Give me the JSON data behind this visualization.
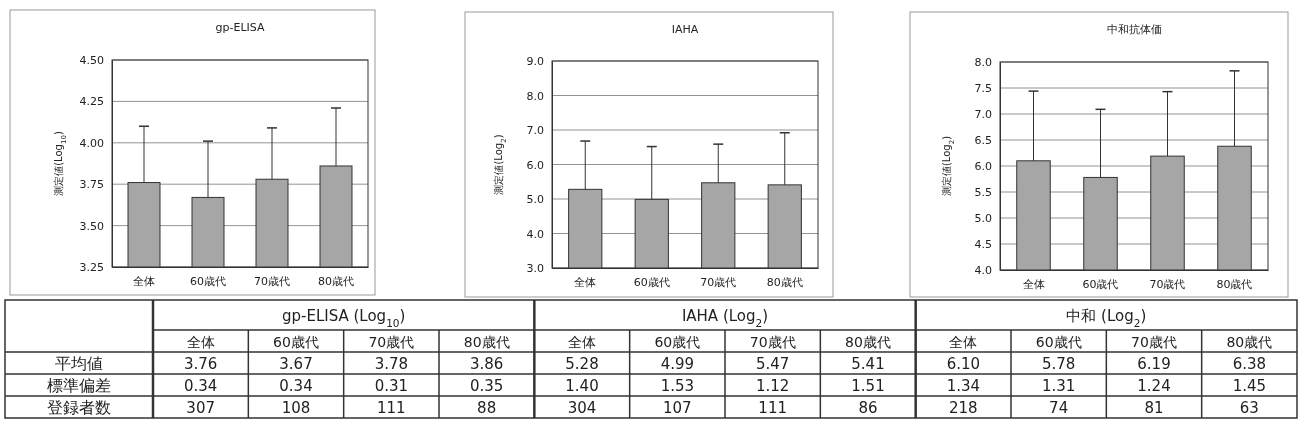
{
  "chart_data": [
    {
      "type": "bar",
      "title": "gp-ELISA",
      "ylabel": "測定値(Log$_{10}$)",
      "categories": [
        "全体",
        "60歳代",
        "70歳代",
        "80歳代"
      ],
      "color": "#a6a6a6",
      "values": [
        3.76,
        3.67,
        3.78,
        3.86
      ],
      "errors": [
        [
          3.76,
          4.1
        ],
        [
          3.67,
          4.01
        ],
        [
          3.78,
          4.09
        ],
        [
          3.86,
          4.21
        ]
      ],
      "ylim": [
        3.25,
        4.5
      ],
      "yticks": [
        {
          "value": 3.25,
          "label": "3.25"
        },
        {
          "value": 3.5,
          "label": "3.50"
        },
        {
          "value": 3.75,
          "label": "3.75"
        },
        {
          "value": 4,
          "label": "4.00"
        },
        {
          "value": 4.25,
          "label": "4.25"
        },
        {
          "value": 4.5,
          "label": "4.50"
        }
      ],
      "grid": "y"
    },
    {
      "type": "bar",
      "title": "IAHA",
      "ylabel": "測定値(Log$_{2}$)",
      "categories": [
        "全体",
        "60歳代",
        "70歳代",
        "80歳代"
      ],
      "color": "#a6a6a6",
      "values": [
        5.28,
        4.99,
        5.47,
        5.41
      ],
      "errors": [
        [
          5.28,
          6.68
        ],
        [
          4.99,
          6.52
        ],
        [
          5.47,
          6.59
        ],
        [
          5.41,
          6.92
        ]
      ],
      "ylim": [
        3,
        9
      ],
      "yticks": [
        {
          "value": 3,
          "label": "3.0"
        },
        {
          "value": 4,
          "label": "4.0"
        },
        {
          "value": 5,
          "label": "5.0"
        },
        {
          "value": 6,
          "label": "6.0"
        },
        {
          "value": 7,
          "label": "7.0"
        },
        {
          "value": 8,
          "label": "8.0"
        },
        {
          "value": 9,
          "label": "9.0"
        }
      ],
      "grid": "y"
    },
    {
      "type": "bar",
      "title": "中和抗体価",
      "ylabel": "測定値(Log$_{2}$)",
      "categories": [
        "全体",
        "60歳代",
        "70歳代",
        "80歳代"
      ],
      "color": "#a6a6a6",
      "values": [
        6.1,
        5.78,
        6.19,
        6.38
      ],
      "errors": [
        [
          6.1,
          7.44
        ],
        [
          5.78,
          7.09
        ],
        [
          6.19,
          7.43
        ],
        [
          6.38,
          7.83
        ]
      ],
      "ylim": [
        4,
        8
      ],
      "yticks": [
        {
          "value": 4,
          "label": "4.0"
        },
        {
          "value": 4.5,
          "label": "4.5"
        },
        {
          "value": 5,
          "label": "5.0"
        },
        {
          "value": 5.5,
          "label": "5.5"
        },
        {
          "value": 6,
          "label": "6.0"
        },
        {
          "value": 6.5,
          "label": "6.5"
        },
        {
          "value": 7,
          "label": "7.0"
        },
        {
          "value": 7.5,
          "label": "7.5"
        },
        {
          "value": 8,
          "label": "8.0"
        }
      ],
      "grid": "y"
    },
    {
      "type": "other",
      "annotations": [
        "gp-ELISA (Log$_{10}$)",
        "IAHA (Log$_{2}$)",
        "中和 (Log$_{2}$)"
      ],
      "categories": [
        "全体",
        "60歳代",
        "70歳代",
        "80歳代",
        "全体",
        "60歳代",
        "70歳代",
        "80歳代",
        "全体",
        "60歳代",
        "70歳代",
        "80歳代"
      ],
      "y_categories": [
        "平均値",
        "標準偏差",
        "登録者数"
      ],
      "cell_labels": [
        [
          "3.76",
          "3.67",
          "3.78",
          "3.86",
          "5.28",
          "4.99",
          "5.47",
          "5.41",
          "6.10",
          "5.78",
          "6.19",
          "6.38"
        ],
        [
          "0.34",
          "0.34",
          "0.31",
          "0.35",
          "1.40",
          "1.53",
          "1.12",
          "1.51",
          "1.34",
          "1.31",
          "1.24",
          "1.45"
        ],
        [
          "307",
          "108",
          "111",
          "88",
          "304",
          "107",
          "111",
          "86",
          "218",
          "74",
          "81",
          "63"
        ]
      ]
    }
  ]
}
